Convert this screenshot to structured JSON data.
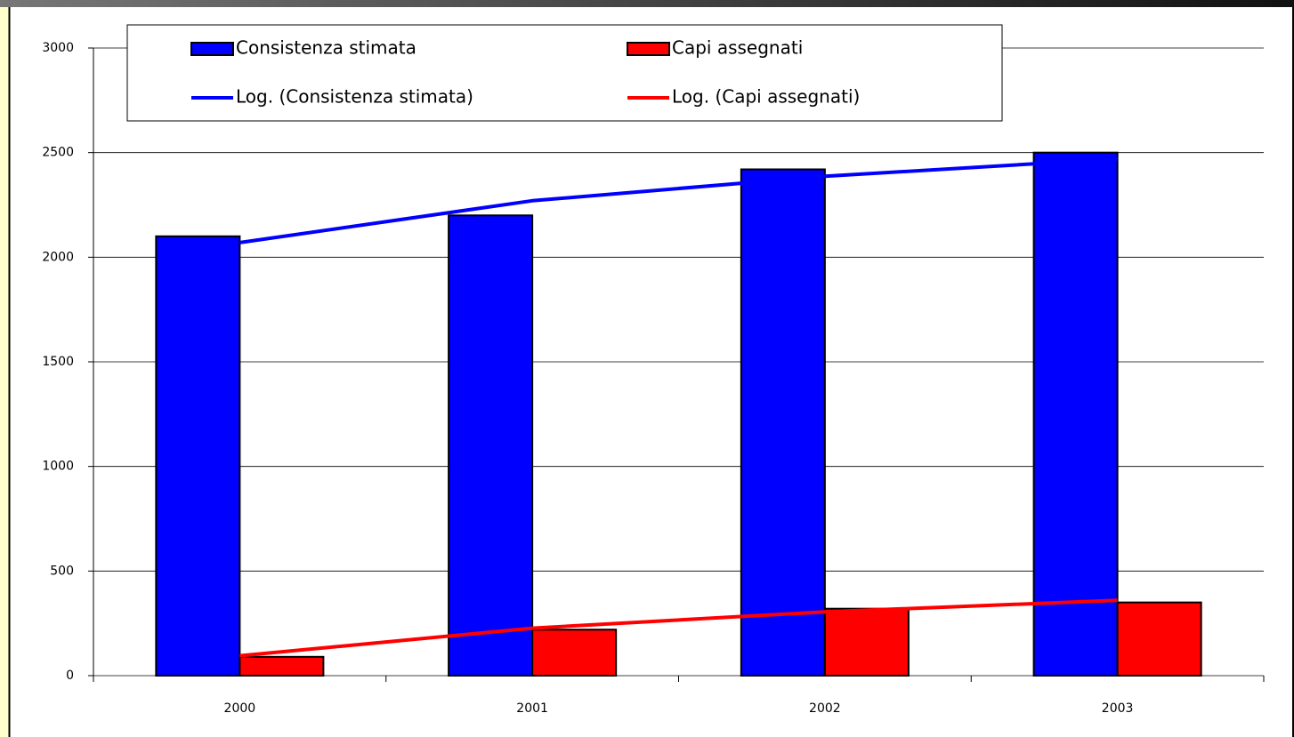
{
  "chart_data": {
    "type": "bar",
    "categories": [
      "2000",
      "2001",
      "2002",
      "2003"
    ],
    "series": [
      {
        "name": "Consistenza stimata",
        "color": "#0000ff",
        "values": [
          2100,
          2200,
          2420,
          2500
        ]
      },
      {
        "name": "Capi assegnati",
        "color": "#ff0000",
        "values": [
          90,
          220,
          320,
          350
        ]
      },
      {
        "name": "Log. (Consistenza stimata)",
        "color": "#0000ff",
        "type": "line",
        "values": [
          2070,
          2270,
          2387,
          2470
        ]
      },
      {
        "name": "Log. (Capi assegnati)",
        "color": "#ff0000",
        "type": "line",
        "values": [
          95,
          227,
          305,
          360
        ]
      }
    ],
    "ylim": [
      0,
      3000
    ],
    "yticks": [
      0,
      500,
      1000,
      1500,
      2000,
      2500,
      3000
    ],
    "grid": true
  }
}
